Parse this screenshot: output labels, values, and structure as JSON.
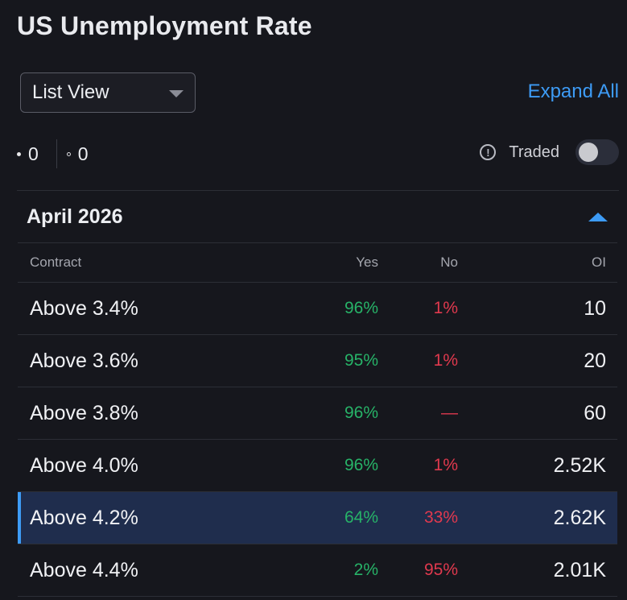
{
  "title": "US Unemployment Rate",
  "view_select": {
    "label": "List View"
  },
  "expand_all_label": "Expand All",
  "counts": {
    "filled": "0",
    "hollow": "0"
  },
  "traded": {
    "label": "Traded",
    "enabled": false
  },
  "group": {
    "title": "April 2026",
    "expanded": true
  },
  "table": {
    "headers": {
      "contract": "Contract",
      "yes": "Yes",
      "no": "No",
      "oi": "OI"
    },
    "rows": [
      {
        "contract": "Above 3.4%",
        "yes": "96%",
        "no": "1%",
        "oi": "10",
        "selected": false
      },
      {
        "contract": "Above 3.6%",
        "yes": "95%",
        "no": "1%",
        "oi": "20",
        "selected": false
      },
      {
        "contract": "Above 3.8%",
        "yes": "96%",
        "no": "—",
        "oi": "60",
        "selected": false
      },
      {
        "contract": "Above 4.0%",
        "yes": "96%",
        "no": "1%",
        "oi": "2.52K",
        "selected": false
      },
      {
        "contract": "Above 4.2%",
        "yes": "64%",
        "no": "33%",
        "oi": "2.62K",
        "selected": true
      },
      {
        "contract": "Above 4.4%",
        "yes": "2%",
        "no": "95%",
        "oi": "2.01K",
        "selected": false
      }
    ]
  },
  "colors": {
    "accent": "#3d9bf5",
    "yes": "#27b368",
    "no": "#e0394e",
    "background": "#16171d",
    "selected_row": "#1f2d4d"
  }
}
